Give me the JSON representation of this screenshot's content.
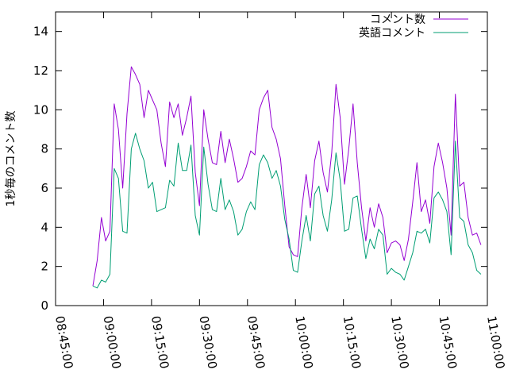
{
  "chart_data": {
    "type": "line",
    "title": "",
    "xlabel": "",
    "ylabel": "1秒毎のコメント数",
    "xlim": [
      31500,
      39600
    ],
    "ylim": [
      0,
      15
    ],
    "x_ticks": [
      "08:45:00",
      "09:00:00",
      "09:15:00",
      "09:30:00",
      "09:45:00",
      "10:00:00",
      "10:15:00",
      "10:30:00",
      "10:45:00",
      "11:00:00"
    ],
    "y_ticks": [
      "0",
      "2",
      "4",
      "6",
      "8",
      "10",
      "12",
      "14"
    ],
    "grid": false,
    "legend_position": "top-right",
    "series": [
      {
        "name": "コメント数",
        "color": "#9400d3",
        "x": [
          32200,
          32280,
          32360,
          32440,
          32520,
          32600,
          32680,
          32760,
          32840,
          32920,
          33000,
          33080,
          33160,
          33240,
          33320,
          33400,
          33480,
          33560,
          33640,
          33720,
          33800,
          33880,
          33960,
          34040,
          34120,
          34200,
          34280,
          34360,
          34440,
          34520,
          34600,
          34680,
          34760,
          34840,
          34920,
          35000,
          35080,
          35160,
          35240,
          35320,
          35400,
          35480,
          35560,
          35640,
          35720,
          35800,
          35880,
          35960,
          36040,
          36120,
          36200,
          36280,
          36360,
          36440,
          36520,
          36600,
          36680,
          36760,
          36840,
          36920,
          37000,
          37080,
          37160,
          37240,
          37320,
          37400,
          37480,
          37560,
          37640,
          37720,
          37800,
          37880,
          37960,
          38040,
          38120,
          38200,
          38280,
          38360,
          38440,
          38520,
          38600,
          38680,
          38760,
          38840,
          38920,
          39000,
          39080,
          39160,
          39240,
          39320,
          39400,
          39480
        ],
        "values": [
          1.0,
          2.3,
          4.5,
          3.3,
          3.8,
          10.3,
          9.0,
          6.0,
          9.8,
          12.2,
          11.8,
          11.3,
          9.6,
          11.0,
          10.5,
          10.0,
          8.3,
          7.1,
          10.4,
          9.6,
          10.3,
          8.7,
          9.6,
          10.7,
          6.8,
          5.1,
          10.0,
          8.5,
          7.3,
          7.2,
          8.9,
          7.3,
          8.5,
          7.5,
          6.3,
          6.5,
          7.1,
          7.9,
          7.7,
          10.0,
          10.6,
          11.0,
          9.1,
          8.5,
          7.5,
          5.1,
          3.0,
          2.6,
          2.5,
          5.0,
          6.7,
          5.0,
          7.4,
          8.4,
          6.8,
          5.8,
          7.8,
          11.3,
          9.6,
          6.2,
          8.0,
          10.3,
          7.3,
          5.0,
          3.3,
          5.0,
          4.0,
          5.2,
          4.5,
          2.7,
          3.2,
          3.3,
          3.1,
          2.3,
          3.4,
          5.3,
          7.3,
          4.8,
          5.4,
          4.2,
          7.1,
          8.3,
          7.3,
          6.0,
          3.6,
          10.8,
          6.1,
          6.3,
          4.5,
          3.6,
          3.7,
          3.1
        ]
      },
      {
        "name": "英語コメント",
        "color": "#009e73",
        "x": [
          32200,
          32280,
          32360,
          32440,
          32520,
          32600,
          32680,
          32760,
          32840,
          32920,
          33000,
          33080,
          33160,
          33240,
          33320,
          33400,
          33480,
          33560,
          33640,
          33720,
          33800,
          33880,
          33960,
          34040,
          34120,
          34200,
          34280,
          34360,
          34440,
          34520,
          34600,
          34680,
          34760,
          34840,
          34920,
          35000,
          35080,
          35160,
          35240,
          35320,
          35400,
          35480,
          35560,
          35640,
          35720,
          35800,
          35880,
          35960,
          36040,
          36120,
          36200,
          36280,
          36360,
          36440,
          36520,
          36600,
          36680,
          36760,
          36840,
          36920,
          37000,
          37080,
          37160,
          37240,
          37320,
          37400,
          37480,
          37560,
          37640,
          37720,
          37800,
          37880,
          37960,
          38040,
          38120,
          38200,
          38280,
          38360,
          38440,
          38520,
          38600,
          38680,
          38760,
          38840,
          38920,
          39000,
          39080,
          39160,
          39240,
          39320,
          39400,
          39480
        ],
        "values": [
          1.0,
          0.9,
          1.3,
          1.2,
          1.6,
          7.0,
          6.5,
          3.8,
          3.7,
          8.0,
          8.8,
          8.0,
          7.4,
          6.0,
          6.3,
          4.8,
          4.9,
          5.0,
          6.4,
          6.1,
          8.3,
          6.9,
          6.9,
          8.2,
          4.6,
          3.6,
          8.1,
          6.2,
          4.9,
          4.8,
          6.5,
          4.9,
          5.4,
          4.8,
          3.6,
          3.9,
          4.8,
          5.3,
          4.9,
          7.2,
          7.7,
          7.3,
          6.5,
          6.9,
          6.1,
          4.4,
          3.4,
          1.8,
          1.7,
          3.3,
          4.6,
          3.3,
          5.7,
          6.1,
          4.6,
          3.8,
          5.4,
          7.8,
          6.4,
          3.8,
          3.9,
          5.5,
          5.6,
          3.9,
          2.4,
          3.4,
          2.9,
          3.9,
          3.6,
          1.6,
          1.9,
          1.7,
          1.6,
          1.3,
          2.0,
          2.7,
          3.8,
          3.7,
          3.9,
          3.2,
          5.5,
          5.8,
          5.4,
          4.8,
          2.6,
          8.4,
          4.5,
          4.3,
          3.1,
          2.7,
          1.8,
          1.6
        ]
      }
    ]
  }
}
